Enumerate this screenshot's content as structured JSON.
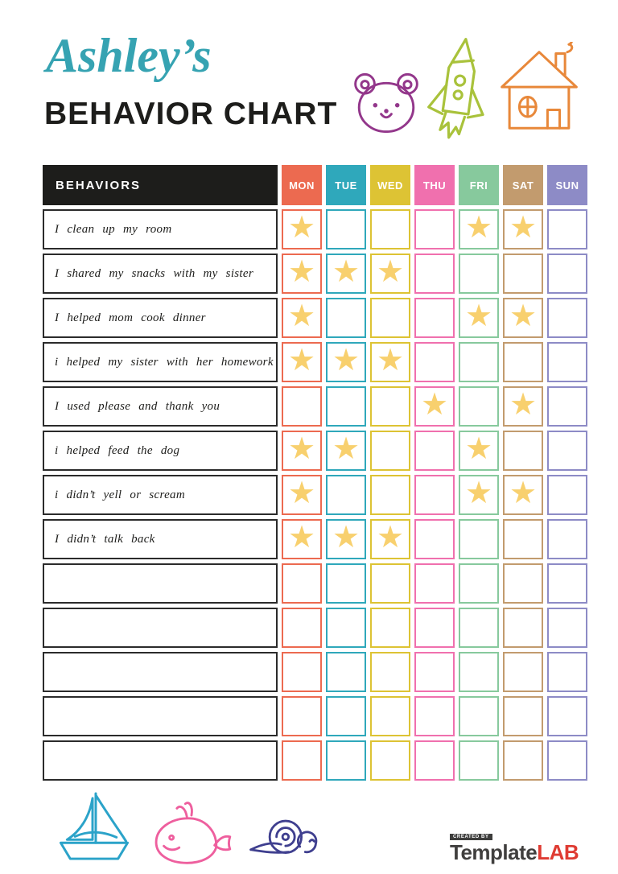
{
  "header": {
    "name_script": "Ashley’s",
    "title": "BEHAVIOR CHART",
    "accent_color": "#36a3b2",
    "title_color": "#1d1d1b"
  },
  "icons": {
    "top": [
      {
        "name": "bear-icon",
        "color": "#93378b"
      },
      {
        "name": "rocket-icon",
        "color": "#a9c23b"
      },
      {
        "name": "house-icon",
        "color": "#e8883a"
      }
    ],
    "bottom": [
      {
        "name": "sailboat-icon",
        "color": "#2ba3c9"
      },
      {
        "name": "whale-icon",
        "color": "#ee5f9e"
      },
      {
        "name": "snail-icon",
        "color": "#3f3f8f"
      }
    ]
  },
  "chart": {
    "behaviors_header": "BEHAVIORS",
    "header_bg": "#1d1d1b",
    "star_color": "#f8d06e",
    "star_glyph": "★",
    "days": [
      {
        "label": "MON",
        "color": "#ec6a50"
      },
      {
        "label": "TUE",
        "color": "#2fa8bb"
      },
      {
        "label": "WED",
        "color": "#ddc334"
      },
      {
        "label": "THU",
        "color": "#f070ae"
      },
      {
        "label": "FRI",
        "color": "#87c99d"
      },
      {
        "label": "SAT",
        "color": "#c29b6e"
      },
      {
        "label": "SUN",
        "color": "#8d8bc6"
      }
    ],
    "rows": [
      {
        "behavior": "I clean up my room",
        "stars": [
          1,
          0,
          0,
          0,
          1,
          1,
          0
        ]
      },
      {
        "behavior": "I shared my snacks with my sister",
        "stars": [
          1,
          1,
          1,
          0,
          0,
          0,
          0
        ]
      },
      {
        "behavior": "I helped mom cook dinner",
        "stars": [
          1,
          0,
          0,
          0,
          1,
          1,
          0
        ]
      },
      {
        "behavior": "i helped my sister with her homework",
        "stars": [
          1,
          1,
          1,
          0,
          0,
          0,
          0
        ]
      },
      {
        "behavior": "I used please and thank you",
        "stars": [
          0,
          0,
          0,
          1,
          0,
          1,
          0
        ]
      },
      {
        "behavior": "i helped feed the dog",
        "stars": [
          1,
          1,
          0,
          0,
          1,
          0,
          0
        ]
      },
      {
        "behavior": "i didn’t yell or scream",
        "stars": [
          1,
          0,
          0,
          0,
          1,
          1,
          0
        ]
      },
      {
        "behavior": "I didn’t talk back",
        "stars": [
          1,
          1,
          1,
          0,
          0,
          0,
          0
        ]
      },
      {
        "behavior": "",
        "stars": [
          0,
          0,
          0,
          0,
          0,
          0,
          0
        ]
      },
      {
        "behavior": "",
        "stars": [
          0,
          0,
          0,
          0,
          0,
          0,
          0
        ]
      },
      {
        "behavior": "",
        "stars": [
          0,
          0,
          0,
          0,
          0,
          0,
          0
        ]
      },
      {
        "behavior": "",
        "stars": [
          0,
          0,
          0,
          0,
          0,
          0,
          0
        ]
      },
      {
        "behavior": "",
        "stars": [
          0,
          0,
          0,
          0,
          0,
          0,
          0
        ]
      }
    ]
  },
  "footer": {
    "logo": {
      "created_by": "CREATED BY",
      "brand_primary": "Template",
      "brand_accent": "LAB",
      "accent_color": "#df3b32"
    }
  }
}
